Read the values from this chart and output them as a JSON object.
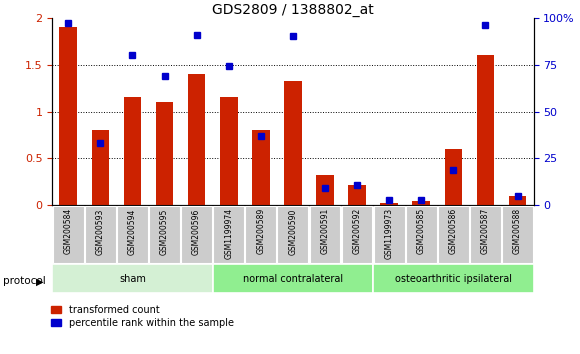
{
  "title": "GDS2809 / 1388802_at",
  "samples": [
    "GSM200584",
    "GSM200593",
    "GSM200594",
    "GSM200595",
    "GSM200596",
    "GSM1199974",
    "GSM200589",
    "GSM200590",
    "GSM200591",
    "GSM200592",
    "GSM1199973",
    "GSM200585",
    "GSM200586",
    "GSM200587",
    "GSM200588"
  ],
  "red_values": [
    1.9,
    0.8,
    1.15,
    1.1,
    1.4,
    1.15,
    0.8,
    1.32,
    0.32,
    0.22,
    0.03,
    0.05,
    0.6,
    1.6,
    0.1
  ],
  "blue_values": [
    97,
    33,
    80,
    69,
    91,
    74,
    37,
    90,
    9,
    11,
    3,
    3,
    19,
    96,
    5
  ],
  "groups": [
    {
      "name": "sham",
      "start": 0,
      "end": 5
    },
    {
      "name": "normal contralateral",
      "start": 5,
      "end": 10
    },
    {
      "name": "osteoarthritic ipsilateral",
      "start": 10,
      "end": 15
    }
  ],
  "group_light_color": "#d4f0d4",
  "group_mid_color": "#90ee90",
  "ylim_left": [
    0,
    2.0
  ],
  "ylim_right": [
    0,
    100
  ],
  "yticks_left": [
    0,
    0.5,
    1.0,
    1.5,
    2.0
  ],
  "ytick_labels_left": [
    "0",
    "0.5",
    "1",
    "1.5",
    "2"
  ],
  "yticks_right": [
    0,
    25,
    50,
    75,
    100
  ],
  "ytick_labels_right": [
    "0",
    "25",
    "50",
    "75",
    "100%"
  ],
  "red_color": "#cc2200",
  "blue_color": "#0000cc",
  "bg_color": "#ffffff",
  "tick_bg_color": "#cccccc",
  "legend_red": "transformed count",
  "legend_blue": "percentile rank within the sample",
  "protocol_label": "protocol"
}
